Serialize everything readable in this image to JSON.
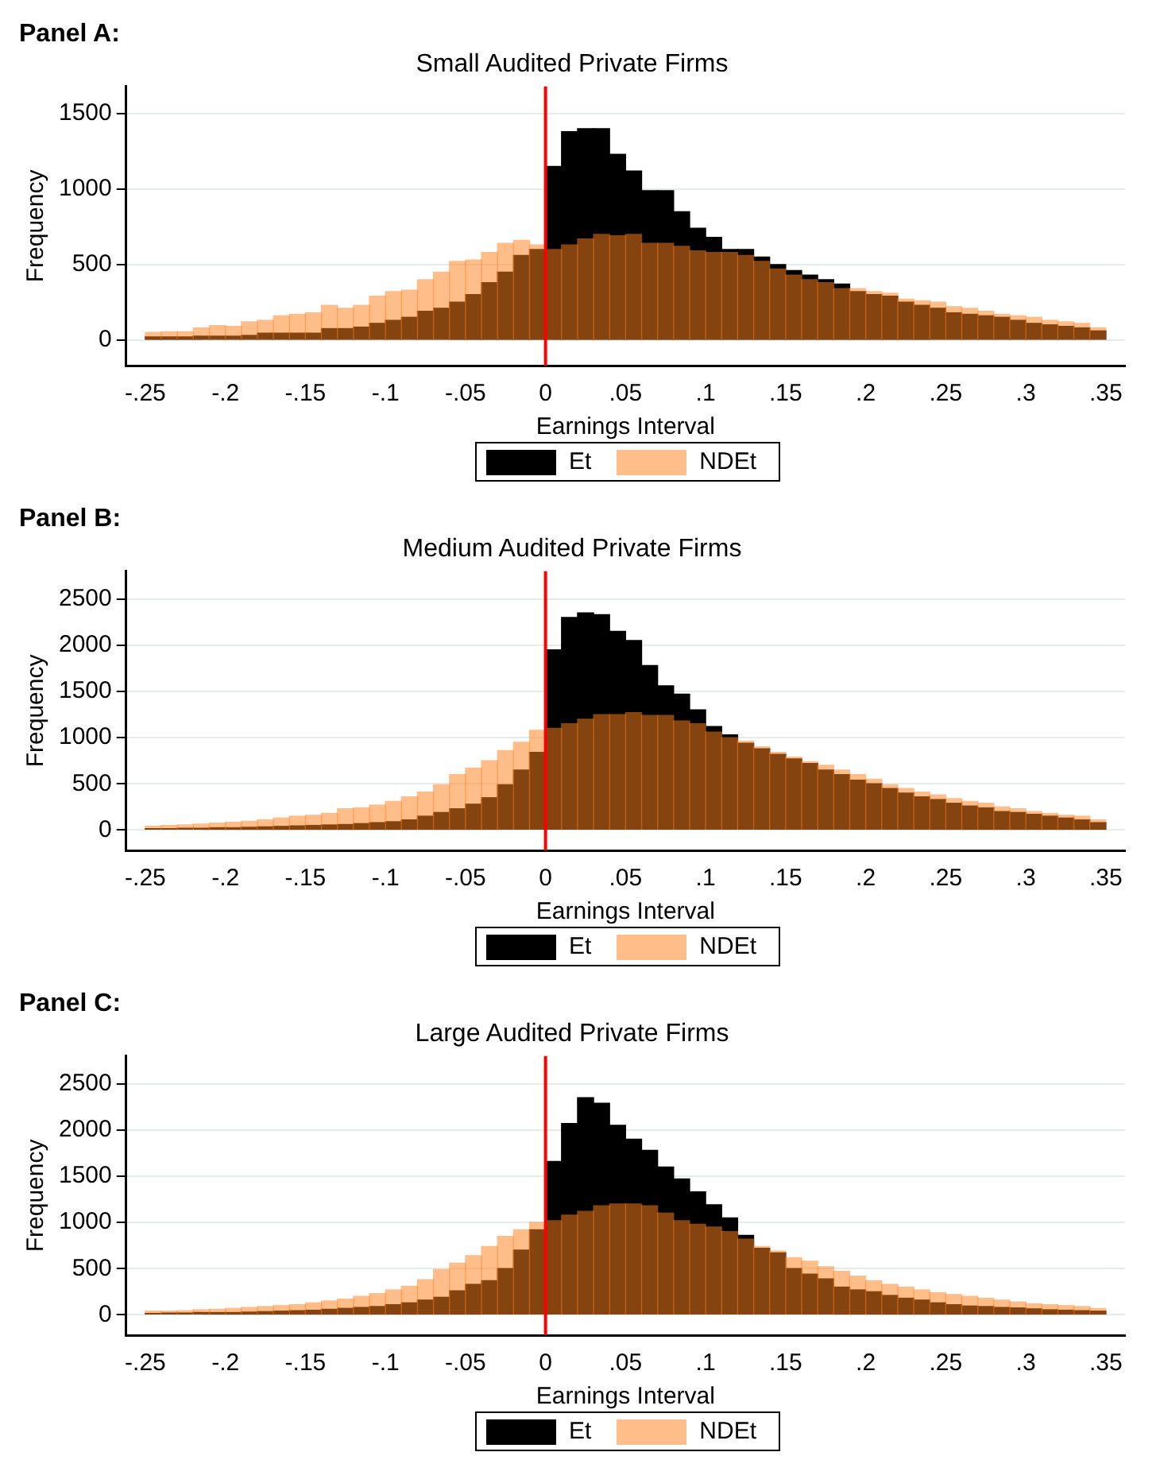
{
  "chart_data": [
    {
      "type": "histogram",
      "title": "Panel A:",
      "subtitle": "Small Audited Private Firms",
      "xlabel": "Earnings Interval",
      "ylabel": "Frequency",
      "bins": [
        -0.25,
        -0.24,
        -0.23,
        -0.22,
        -0.21,
        -0.2,
        -0.19,
        -0.18,
        -0.17,
        -0.16,
        -0.15,
        -0.14,
        -0.13,
        -0.12,
        -0.11,
        -0.1,
        -0.09,
        -0.08,
        -0.07,
        -0.06,
        -0.05,
        -0.04,
        -0.03,
        -0.02,
        -0.01,
        0,
        0.01,
        0.02,
        0.03,
        0.04,
        0.05,
        0.06,
        0.07,
        0.08,
        0.09,
        0.1,
        0.11,
        0.12,
        0.13,
        0.14,
        0.15,
        0.16,
        0.17,
        0.18,
        0.19,
        0.2,
        0.21,
        0.22,
        0.23,
        0.24,
        0.25,
        0.26,
        0.27,
        0.28,
        0.29,
        0.3,
        0.31,
        0.32,
        0.33,
        0.34,
        0.35
      ],
      "series": [
        {
          "name": "Et",
          "color": "#000000",
          "values": [
            20,
            20,
            20,
            25,
            25,
            25,
            30,
            45,
            45,
            45,
            45,
            75,
            75,
            85,
            110,
            130,
            150,
            190,
            210,
            250,
            300,
            380,
            450,
            560,
            600,
            1150,
            1380,
            1400,
            1400,
            1230,
            1120,
            990,
            990,
            850,
            740,
            680,
            600,
            600,
            550,
            500,
            460,
            430,
            400,
            370,
            320,
            300,
            290,
            250,
            230,
            210,
            180,
            170,
            160,
            150,
            130,
            110,
            100,
            90,
            80,
            60
          ]
        },
        {
          "name": "NDEt",
          "color": "#ffbd8a",
          "values": [
            50,
            55,
            55,
            80,
            95,
            90,
            120,
            130,
            160,
            170,
            180,
            230,
            210,
            230,
            290,
            320,
            330,
            400,
            450,
            520,
            530,
            580,
            640,
            660,
            630,
            600,
            630,
            670,
            700,
            690,
            700,
            640,
            640,
            620,
            590,
            580,
            580,
            560,
            520,
            470,
            430,
            400,
            380,
            340,
            340,
            320,
            310,
            270,
            260,
            250,
            220,
            210,
            190,
            170,
            160,
            150,
            130,
            120,
            110,
            80
          ]
        }
      ],
      "xlim": [
        -0.262,
        0.362
      ],
      "ylim": [
        -170,
        1680
      ],
      "xticks": [
        {
          "value": -0.25,
          "label": "-.25"
        },
        {
          "value": -0.2,
          "label": "-.2"
        },
        {
          "value": -0.15,
          "label": "-.15"
        },
        {
          "value": -0.1,
          "label": "-.1"
        },
        {
          "value": -0.05,
          "label": "-.05"
        },
        {
          "value": 0,
          "label": "0"
        },
        {
          "value": 0.05,
          "label": ".05"
        },
        {
          "value": 0.1,
          "label": ".1"
        },
        {
          "value": 0.15,
          "label": ".15"
        },
        {
          "value": 0.2,
          "label": ".2"
        },
        {
          "value": 0.25,
          "label": ".25"
        },
        {
          "value": 0.3,
          "label": ".3"
        },
        {
          "value": 0.35,
          "label": ".35"
        }
      ],
      "yticks": [
        0,
        500,
        1000,
        1500
      ],
      "grid": "y",
      "legend": "bottom",
      "ref_lines": [
        {
          "axis": "x",
          "value": 0,
          "color": "#ff0000"
        }
      ]
    },
    {
      "type": "histogram",
      "title": "Panel B:",
      "subtitle": "Medium Audited Private Firms",
      "xlabel": "Earnings Interval",
      "ylabel": "Frequency",
      "bins": [
        -0.25,
        -0.24,
        -0.23,
        -0.22,
        -0.21,
        -0.2,
        -0.19,
        -0.18,
        -0.17,
        -0.16,
        -0.15,
        -0.14,
        -0.13,
        -0.12,
        -0.11,
        -0.1,
        -0.09,
        -0.08,
        -0.07,
        -0.06,
        -0.05,
        -0.04,
        -0.03,
        -0.02,
        -0.01,
        0,
        0.01,
        0.02,
        0.03,
        0.04,
        0.05,
        0.06,
        0.07,
        0.08,
        0.09,
        0.1,
        0.11,
        0.12,
        0.13,
        0.14,
        0.15,
        0.16,
        0.17,
        0.18,
        0.19,
        0.2,
        0.21,
        0.22,
        0.23,
        0.24,
        0.25,
        0.26,
        0.27,
        0.28,
        0.29,
        0.3,
        0.31,
        0.32,
        0.33,
        0.34,
        0.35
      ],
      "series": [
        {
          "name": "Et",
          "color": "#000000",
          "values": [
            15,
            15,
            20,
            20,
            25,
            25,
            30,
            35,
            40,
            45,
            50,
            55,
            60,
            70,
            80,
            90,
            110,
            150,
            190,
            230,
            280,
            350,
            490,
            650,
            840,
            1950,
            2300,
            2350,
            2330,
            2150,
            2050,
            1780,
            1560,
            1470,
            1300,
            1120,
            1030,
            940,
            880,
            820,
            770,
            720,
            650,
            600,
            540,
            500,
            450,
            400,
            360,
            330,
            290,
            260,
            240,
            200,
            190,
            170,
            150,
            130,
            110,
            80
          ]
        },
        {
          "name": "NDEt",
          "color": "#ffbd8a",
          "values": [
            40,
            50,
            55,
            65,
            75,
            85,
            95,
            110,
            130,
            150,
            160,
            180,
            230,
            240,
            270,
            310,
            360,
            410,
            490,
            600,
            670,
            750,
            860,
            950,
            1080,
            1100,
            1150,
            1200,
            1250,
            1250,
            1270,
            1240,
            1240,
            1180,
            1150,
            1060,
            1000,
            960,
            900,
            840,
            790,
            740,
            700,
            650,
            600,
            550,
            490,
            450,
            410,
            380,
            340,
            310,
            290,
            250,
            230,
            200,
            180,
            160,
            150,
            110
          ]
        }
      ],
      "xlim": [
        -0.262,
        0.362
      ],
      "ylim": [
        -220,
        2800
      ],
      "xticks": [
        {
          "value": -0.25,
          "label": "-.25"
        },
        {
          "value": -0.2,
          "label": "-.2"
        },
        {
          "value": -0.15,
          "label": "-.15"
        },
        {
          "value": -0.1,
          "label": "-.1"
        },
        {
          "value": -0.05,
          "label": "-.05"
        },
        {
          "value": 0,
          "label": "0"
        },
        {
          "value": 0.05,
          "label": ".05"
        },
        {
          "value": 0.1,
          "label": ".1"
        },
        {
          "value": 0.15,
          "label": ".15"
        },
        {
          "value": 0.2,
          "label": ".2"
        },
        {
          "value": 0.25,
          "label": ".25"
        },
        {
          "value": 0.3,
          "label": ".3"
        },
        {
          "value": 0.35,
          "label": ".35"
        }
      ],
      "yticks": [
        0,
        500,
        1000,
        1500,
        2000,
        2500
      ],
      "grid": "y",
      "legend": "bottom",
      "ref_lines": [
        {
          "axis": "x",
          "value": 0,
          "color": "#ff0000"
        }
      ]
    },
    {
      "type": "histogram",
      "title": "Panel C:",
      "subtitle": "Large Audited Private Firms",
      "xlabel": "Earnings Interval",
      "ylabel": "Frequency",
      "bins": [
        -0.25,
        -0.24,
        -0.23,
        -0.22,
        -0.21,
        -0.2,
        -0.19,
        -0.18,
        -0.17,
        -0.16,
        -0.15,
        -0.14,
        -0.13,
        -0.12,
        -0.11,
        -0.1,
        -0.09,
        -0.08,
        -0.07,
        -0.06,
        -0.05,
        -0.04,
        -0.03,
        -0.02,
        -0.01,
        0,
        0.01,
        0.02,
        0.03,
        0.04,
        0.05,
        0.06,
        0.07,
        0.08,
        0.09,
        0.1,
        0.11,
        0.12,
        0.13,
        0.14,
        0.15,
        0.16,
        0.17,
        0.18,
        0.19,
        0.2,
        0.21,
        0.22,
        0.23,
        0.24,
        0.25,
        0.26,
        0.27,
        0.28,
        0.29,
        0.3,
        0.31,
        0.32,
        0.33,
        0.34,
        0.35
      ],
      "series": [
        {
          "name": "Et",
          "color": "#000000",
          "values": [
            15,
            20,
            20,
            25,
            25,
            25,
            30,
            35,
            40,
            45,
            50,
            60,
            70,
            80,
            90,
            110,
            130,
            160,
            190,
            260,
            330,
            370,
            500,
            700,
            920,
            1660,
            2070,
            2350,
            2290,
            2050,
            1900,
            1780,
            1600,
            1470,
            1330,
            1190,
            1050,
            860,
            720,
            670,
            500,
            440,
            390,
            300,
            270,
            250,
            210,
            180,
            160,
            130,
            110,
            95,
            90,
            80,
            75,
            65,
            55,
            50,
            45,
            40
          ]
        },
        {
          "name": "NDEt",
          "color": "#ffbd8a",
          "values": [
            40,
            40,
            45,
            55,
            60,
            70,
            80,
            90,
            100,
            110,
            130,
            150,
            170,
            200,
            230,
            270,
            310,
            380,
            490,
            560,
            640,
            740,
            850,
            920,
            1000,
            1020,
            1080,
            1120,
            1180,
            1200,
            1200,
            1180,
            1100,
            1020,
            980,
            950,
            900,
            820,
            740,
            690,
            620,
            580,
            520,
            470,
            420,
            370,
            330,
            300,
            270,
            240,
            220,
            200,
            180,
            160,
            140,
            120,
            110,
            100,
            90,
            70
          ]
        }
      ],
      "xlim": [
        -0.262,
        0.362
      ],
      "ylim": [
        -220,
        2800
      ],
      "xticks": [
        {
          "value": -0.25,
          "label": "-.25"
        },
        {
          "value": -0.2,
          "label": "-.2"
        },
        {
          "value": -0.15,
          "label": "-.15"
        },
        {
          "value": -0.1,
          "label": "-.1"
        },
        {
          "value": -0.05,
          "label": "-.05"
        },
        {
          "value": 0,
          "label": "0"
        },
        {
          "value": 0.05,
          "label": ".05"
        },
        {
          "value": 0.1,
          "label": ".1"
        },
        {
          "value": 0.15,
          "label": ".15"
        },
        {
          "value": 0.2,
          "label": ".2"
        },
        {
          "value": 0.25,
          "label": ".25"
        },
        {
          "value": 0.3,
          "label": ".3"
        },
        {
          "value": 0.35,
          "label": ".35"
        }
      ],
      "yticks": [
        0,
        500,
        1000,
        1500,
        2000,
        2500
      ],
      "grid": "y",
      "legend": "bottom",
      "ref_lines": [
        {
          "axis": "x",
          "value": 0,
          "color": "#ff0000"
        }
      ]
    }
  ]
}
